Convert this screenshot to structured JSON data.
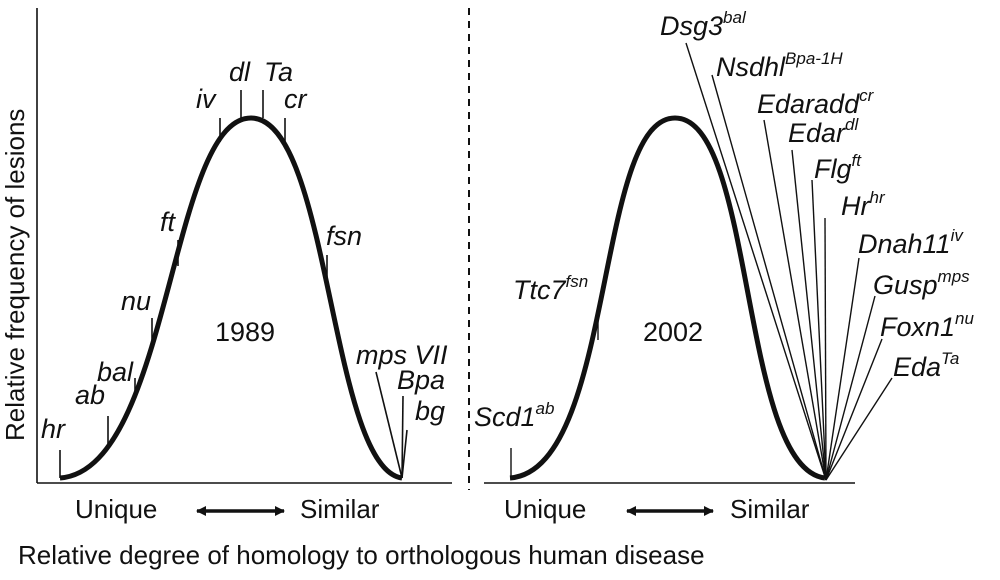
{
  "y_axis_label": "Relative frequency of lesions",
  "x_axis_caption": "Relative degree of homology to orthologous human disease",
  "panels": [
    {
      "year": "1989",
      "unique_label": "Unique",
      "similar_label": "Similar",
      "genes": [
        {
          "base": "hr",
          "sup": ""
        },
        {
          "base": "ab",
          "sup": ""
        },
        {
          "base": "bal",
          "sup": ""
        },
        {
          "base": "nu",
          "sup": ""
        },
        {
          "base": "ft",
          "sup": ""
        },
        {
          "base": "iv",
          "sup": ""
        },
        {
          "base": "dl",
          "sup": ""
        },
        {
          "base": "Ta",
          "sup": ""
        },
        {
          "base": "cr",
          "sup": ""
        },
        {
          "base": "fsn",
          "sup": ""
        },
        {
          "base": "mps VII",
          "sup": ""
        },
        {
          "base": "Bpa",
          "sup": ""
        },
        {
          "base": "bg",
          "sup": ""
        }
      ]
    },
    {
      "year": "2002",
      "unique_label": "Unique",
      "similar_label": "Similar",
      "genes": [
        {
          "base": "Scd1",
          "sup": "ab"
        },
        {
          "base": "Ttc7",
          "sup": "fsn"
        },
        {
          "base": "Dsg3",
          "sup": "bal"
        },
        {
          "base": "Nsdhl",
          "sup": "Bpa-1H"
        },
        {
          "base": "Edaradd",
          "sup": "cr"
        },
        {
          "base": "Edar",
          "sup": "dl"
        },
        {
          "base": "Flg",
          "sup": "ft"
        },
        {
          "base": "Hr",
          "sup": "hr"
        },
        {
          "base": "Dnah11",
          "sup": "iv"
        },
        {
          "base": "Gusp",
          "sup": "mps"
        },
        {
          "base": "Foxn1",
          "sup": "nu"
        },
        {
          "base": "Eda",
          "sup": "Ta"
        }
      ]
    }
  ]
}
